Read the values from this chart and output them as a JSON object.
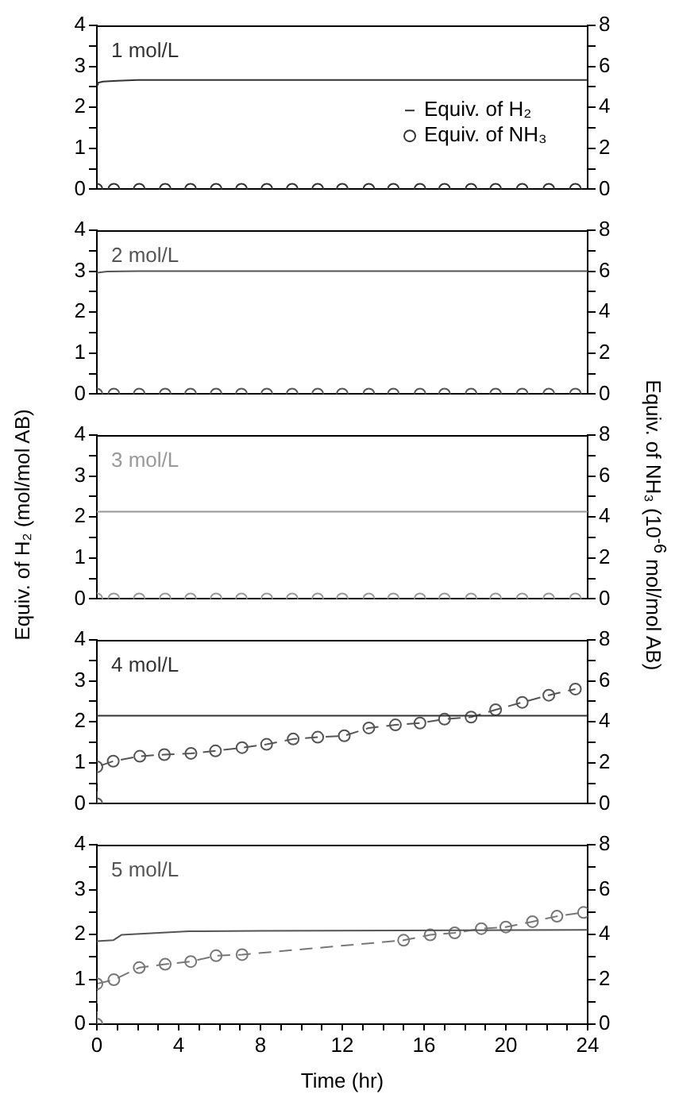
{
  "chart_data": [
    {
      "type": "line",
      "title": "1 mol/L",
      "legend": "right",
      "tick_labels": "y",
      "xlim": [
        0,
        24
      ],
      "ylim": [
        0,
        4
      ],
      "yticks": [
        0,
        {
          "value": 0.5,
          "label": null
        },
        1,
        {
          "value": 1.5,
          "label": null
        },
        2,
        {
          "value": 2.5,
          "label": null
        },
        3,
        {
          "value": 3.5,
          "label": null
        },
        4
      ],
      "y2lim": [
        0,
        8
      ],
      "y2ticks": [
        0,
        {
          "value": 1,
          "label": null
        },
        2,
        {
          "value": 3,
          "label": null
        },
        4,
        {
          "value": 5,
          "label": null
        },
        6,
        {
          "value": 7,
          "label": null
        },
        8
      ],
      "series": [
        {
          "name": "Equiv. of H₂",
          "type": "line",
          "marker": "none",
          "line_style": "solid",
          "color": "#333333",
          "x": [
            0,
            0.05,
            0.3,
            1,
            2,
            24
          ],
          "values": [
            2.55,
            2.6,
            2.63,
            2.65,
            2.67,
            2.67
          ]
        },
        {
          "name": "Equiv. of NH₃",
          "type": "scatter",
          "marker": "circle",
          "axis": "y2",
          "color": "#333333",
          "x": [
            0,
            0.83,
            2.07,
            3.34,
            4.58,
            5.83,
            7.07,
            8.31,
            9.55,
            10.8,
            12.0,
            13.3,
            14.5,
            15.8,
            17.0,
            18.3,
            19.5,
            20.8,
            22.1,
            23.4
          ],
          "values": [
            0,
            0,
            0,
            0,
            0,
            0,
            0,
            0,
            0,
            0,
            0,
            0,
            0,
            0,
            0,
            0,
            0,
            0,
            0,
            0
          ]
        }
      ]
    },
    {
      "type": "line",
      "title": "2 mol/L",
      "tick_labels": "y",
      "xlim": [
        0,
        24
      ],
      "ylim": [
        0,
        4
      ],
      "yticks": [
        0,
        {
          "value": 0.5,
          "label": null
        },
        1,
        {
          "value": 1.5,
          "label": null
        },
        2,
        {
          "value": 2.5,
          "label": null
        },
        3,
        {
          "value": 3.5,
          "label": null
        },
        4
      ],
      "y2lim": [
        0,
        8
      ],
      "y2ticks": [
        0,
        {
          "value": 1,
          "label": null
        },
        2,
        {
          "value": 3,
          "label": null
        },
        4,
        {
          "value": 5,
          "label": null
        },
        6,
        {
          "value": 7,
          "label": null
        },
        8
      ],
      "series": [
        {
          "type": "line",
          "marker": "none",
          "line_style": "solid",
          "color": "#555555",
          "x": [
            0,
            0.1,
            0.5,
            2,
            24
          ],
          "values": [
            2.95,
            2.97,
            2.99,
            3.0,
            3.0
          ]
        },
        {
          "type": "scatter",
          "marker": "circle",
          "axis": "y2",
          "color": "#555555",
          "x": [
            0,
            0.83,
            2.07,
            3.34,
            4.58,
            5.83,
            7.07,
            8.31,
            9.55,
            10.8,
            12.0,
            13.3,
            14.5,
            15.8,
            17.0,
            18.3,
            19.5,
            20.8,
            22.1,
            23.4
          ],
          "values": [
            0,
            0,
            0,
            0,
            0,
            0,
            0,
            0,
            0,
            0,
            0,
            0,
            0,
            0,
            0,
            0,
            0,
            0,
            0,
            0
          ]
        }
      ]
    },
    {
      "type": "line",
      "title": "3 mol/L",
      "ylabel": "Equiv. of H₂ (mol/mol AB)",
      "y2label": "Equiv. of NH₃ (10$^{-6}$ mol/mol AB)",
      "tick_labels": "y",
      "xlim": [
        0,
        24
      ],
      "ylim": [
        0,
        4
      ],
      "yticks": [
        0,
        {
          "value": 0.5,
          "label": null
        },
        1,
        {
          "value": 1.5,
          "label": null
        },
        2,
        {
          "value": 2.5,
          "label": null
        },
        3,
        {
          "value": 3.5,
          "label": null
        },
        4
      ],
      "y2lim": [
        0,
        8
      ],
      "y2ticks": [
        0,
        {
          "value": 1,
          "label": null
        },
        2,
        {
          "value": 3,
          "label": null
        },
        4,
        {
          "value": 5,
          "label": null
        },
        6,
        {
          "value": 7,
          "label": null
        },
        8
      ],
      "series": [
        {
          "type": "line",
          "marker": "none",
          "line_style": "solid",
          "color": "#999999",
          "x": [
            0,
            24
          ],
          "values": [
            2.13,
            2.13
          ]
        },
        {
          "type": "scatter",
          "marker": "circle",
          "axis": "y2",
          "color": "#999999",
          "x": [
            0,
            0.83,
            2.07,
            3.34,
            4.58,
            5.83,
            7.07,
            8.31,
            9.55,
            10.8,
            12.0,
            13.3,
            14.5,
            15.8,
            17.0,
            18.3,
            19.5,
            20.8,
            22.1,
            23.4
          ],
          "values": [
            0,
            0,
            0,
            0,
            0,
            0,
            0,
            0,
            0,
            0,
            0,
            0,
            0,
            0,
            0,
            0,
            0,
            0,
            0,
            0
          ]
        }
      ]
    },
    {
      "type": "line",
      "title": "4 mol/L",
      "tick_labels": "y",
      "xlim": [
        0,
        24
      ],
      "ylim": [
        0,
        4
      ],
      "yticks": [
        0,
        {
          "value": 0.5,
          "label": null
        },
        1,
        {
          "value": 1.5,
          "label": null
        },
        2,
        {
          "value": 2.5,
          "label": null
        },
        3,
        {
          "value": 3.5,
          "label": null
        },
        4
      ],
      "y2lim": [
        0,
        8
      ],
      "y2ticks": [
        0,
        {
          "value": 1,
          "label": null
        },
        2,
        {
          "value": 3,
          "label": null
        },
        4,
        {
          "value": 5,
          "label": null
        },
        6,
        {
          "value": 7,
          "label": null
        },
        8
      ],
      "series": [
        {
          "type": "line",
          "marker": "none",
          "line_style": "solid",
          "color": "#333333",
          "x": [
            0,
            24
          ],
          "values": [
            2.15,
            2.15
          ]
        },
        {
          "type": "line",
          "marker": "circle",
          "line_style": "dashed",
          "axis": "y2",
          "color": "#555555",
          "x": [
            0,
            0,
            0.8,
            2.1,
            3.3,
            4.6,
            5.8,
            7.1,
            8.3,
            9.6,
            10.8,
            12.1,
            13.3,
            14.6,
            15.8,
            17.0,
            18.3,
            19.5,
            20.8,
            22.1,
            23.4
          ],
          "values": [
            0,
            1.8,
            2.08,
            2.32,
            2.4,
            2.46,
            2.58,
            2.74,
            2.9,
            3.16,
            3.25,
            3.32,
            3.7,
            3.85,
            3.94,
            4.13,
            4.23,
            4.59,
            4.95,
            5.3,
            5.6
          ]
        }
      ]
    },
    {
      "type": "line",
      "title": "5 mol/L",
      "xlabel": "Time (hr)",
      "xlim": [
        0,
        24
      ],
      "xticks": [
        0,
        {
          "value": 1,
          "label": null
        },
        {
          "value": 2,
          "label": null
        },
        {
          "value": 3,
          "label": null
        },
        4,
        {
          "value": 5,
          "label": null
        },
        {
          "value": 6,
          "label": null
        },
        {
          "value": 7,
          "label": null
        },
        8,
        {
          "value": 9,
          "label": null
        },
        {
          "value": 10,
          "label": null
        },
        {
          "value": 11,
          "label": null
        },
        12,
        {
          "value": 13,
          "label": null
        },
        {
          "value": 14,
          "label": null
        },
        {
          "value": 15,
          "label": null
        },
        16,
        {
          "value": 17,
          "label": null
        },
        {
          "value": 18,
          "label": null
        },
        {
          "value": 19,
          "label": null
        },
        20,
        {
          "value": 21,
          "label": null
        },
        {
          "value": 22,
          "label": null
        },
        {
          "value": 23,
          "label": null
        },
        24
      ],
      "ylim": [
        0,
        4
      ],
      "yticks": [
        0,
        {
          "value": 0.5,
          "label": null
        },
        1,
        {
          "value": 1.5,
          "label": null
        },
        2,
        {
          "value": 2.5,
          "label": null
        },
        3,
        {
          "value": 3.5,
          "label": null
        },
        4
      ],
      "y2lim": [
        0,
        8
      ],
      "y2ticks": [
        0,
        {
          "value": 1,
          "label": null
        },
        2,
        {
          "value": 3,
          "label": null
        },
        4,
        {
          "value": 5,
          "label": null
        },
        6,
        {
          "value": 7,
          "label": null
        },
        8
      ],
      "series": [
        {
          "type": "line",
          "marker": "none",
          "line_style": "solid",
          "color": "#555555",
          "x": [
            0,
            0.8,
            1.2,
            4.5,
            8,
            24
          ],
          "values": [
            1.85,
            1.87,
            1.99,
            2.07,
            2.08,
            2.1
          ]
        },
        {
          "type": "line",
          "marker": "circle",
          "line_style": "dashed",
          "axis": "y2",
          "color": "#777777",
          "x": [
            0,
            0,
            0.83,
            2.07,
            3.34,
            4.59,
            5.83,
            7.1,
            15.0,
            16.3,
            17.5,
            18.8,
            20.0,
            21.3,
            22.5,
            23.8
          ],
          "values": [
            0,
            1.8,
            1.98,
            2.52,
            2.67,
            2.79,
            3.05,
            3.1,
            3.74,
            3.98,
            4.07,
            4.26,
            4.33,
            4.57,
            4.81,
            4.98
          ]
        }
      ]
    }
  ]
}
